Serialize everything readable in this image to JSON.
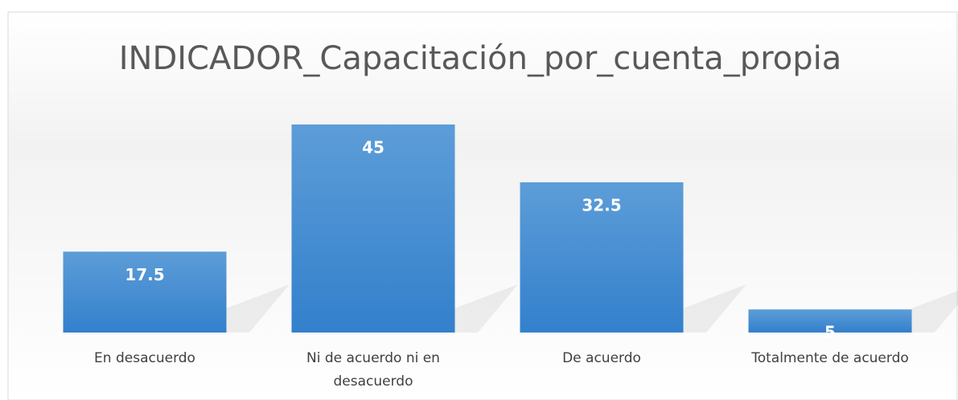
{
  "chart_data": {
    "type": "bar",
    "title": "INDICADOR_Capacitación_por_cuenta_propia",
    "categories": [
      "En desacuerdo",
      "Ni de acuerdo ni en desacuerdo",
      "De acuerdo",
      "Totalmente de acuerdo"
    ],
    "values": [
      17.5,
      45,
      32.5,
      5
    ],
    "color": "#4a8ad0"
  }
}
